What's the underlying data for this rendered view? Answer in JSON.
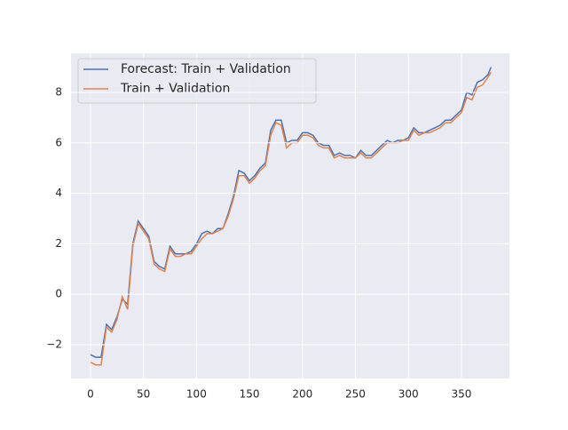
{
  "chart_data": {
    "type": "line",
    "x": [
      0,
      5,
      10,
      15,
      20,
      25,
      30,
      35,
      40,
      45,
      50,
      55,
      60,
      65,
      70,
      75,
      80,
      85,
      90,
      95,
      100,
      105,
      110,
      115,
      120,
      125,
      130,
      135,
      140,
      145,
      150,
      155,
      160,
      165,
      170,
      175,
      180,
      185,
      190,
      195,
      200,
      205,
      210,
      215,
      220,
      225,
      230,
      235,
      240,
      245,
      250,
      255,
      260,
      265,
      270,
      275,
      280,
      285,
      290,
      295,
      300,
      305,
      310,
      315,
      320,
      325,
      330,
      335,
      340,
      345,
      350,
      355,
      360,
      365,
      370,
      375,
      378
    ],
    "series": [
      {
        "name": "Forecast: Train + Validation",
        "color": "#4c72b0",
        "values": [
          -2.4,
          -2.5,
          -2.5,
          -1.2,
          -1.4,
          -0.9,
          -0.2,
          -0.4,
          2.0,
          2.9,
          2.6,
          2.3,
          1.3,
          1.1,
          1.0,
          1.9,
          1.6,
          1.6,
          1.6,
          1.7,
          2.0,
          2.4,
          2.5,
          2.4,
          2.6,
          2.6,
          3.2,
          3.9,
          4.9,
          4.8,
          4.5,
          4.7,
          5.0,
          5.2,
          6.5,
          6.9,
          6.9,
          6.0,
          6.1,
          6.1,
          6.4,
          6.4,
          6.3,
          6.0,
          5.9,
          5.9,
          5.5,
          5.6,
          5.5,
          5.5,
          5.4,
          5.7,
          5.5,
          5.5,
          5.7,
          5.9,
          6.1,
          6.0,
          6.1,
          6.1,
          6.2,
          6.6,
          6.4,
          6.4,
          6.5,
          6.6,
          6.7,
          6.9,
          6.9,
          7.1,
          7.3,
          8.0,
          7.9,
          8.4,
          8.5,
          8.7,
          9.0
        ]
      },
      {
        "name": "Train + Validation",
        "color": "#dd8452",
        "values": [
          -2.7,
          -2.8,
          -2.8,
          -1.3,
          -1.5,
          -1.0,
          -0.1,
          -0.6,
          1.9,
          2.8,
          2.5,
          2.2,
          1.2,
          1.0,
          0.9,
          1.8,
          1.5,
          1.5,
          1.6,
          1.6,
          1.9,
          2.2,
          2.4,
          2.4,
          2.5,
          2.6,
          3.1,
          3.8,
          4.7,
          4.7,
          4.4,
          4.6,
          4.9,
          5.1,
          6.3,
          6.8,
          6.7,
          5.8,
          6.0,
          6.0,
          6.3,
          6.3,
          6.2,
          5.9,
          5.8,
          5.8,
          5.4,
          5.5,
          5.4,
          5.4,
          5.4,
          5.6,
          5.4,
          5.4,
          5.6,
          5.8,
          6.0,
          6.0,
          6.0,
          6.1,
          6.1,
          6.5,
          6.3,
          6.4,
          6.4,
          6.5,
          6.6,
          6.8,
          6.8,
          7.0,
          7.2,
          7.8,
          7.7,
          8.2,
          8.3,
          8.6,
          8.8
        ]
      }
    ],
    "xlim": [
      -18.4,
      395.3
    ],
    "ylim": [
      -3.34,
      9.55
    ],
    "xticks": [
      0,
      50,
      100,
      150,
      200,
      250,
      300,
      350
    ],
    "yticks": [
      {
        "value": -2,
        "label": "−2"
      },
      0,
      2,
      4,
      6,
      8
    ],
    "grid": true,
    "legend": "upper left"
  }
}
